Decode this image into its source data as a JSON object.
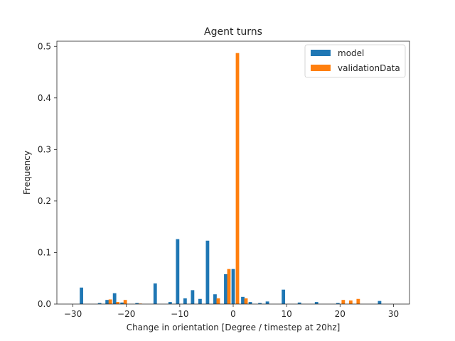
{
  "chart_data": {
    "type": "bar",
    "title": "Agent turns",
    "xlabel": "Change in orientation [Degree / timestep at 20hz]",
    "ylabel": "Frequency",
    "xlim": [
      -33,
      33
    ],
    "ylim": [
      0,
      0.51
    ],
    "xticks": [
      -30,
      -20,
      -10,
      0,
      10,
      20,
      30
    ],
    "yticks": [
      0.0,
      0.1,
      0.2,
      0.3,
      0.4,
      0.5
    ],
    "legend_position": "top-right",
    "grid": false,
    "bin_width": 0.64,
    "series": [
      {
        "name": "model",
        "color": "#1f77b4",
        "points": [
          {
            "x": -28.4,
            "y": 0.032
          },
          {
            "x": -25.0,
            "y": 0.002
          },
          {
            "x": -23.6,
            "y": 0.008
          },
          {
            "x": -22.2,
            "y": 0.021
          },
          {
            "x": -20.8,
            "y": 0.003
          },
          {
            "x": -18.0,
            "y": 0.002
          },
          {
            "x": -14.6,
            "y": 0.04
          },
          {
            "x": -11.8,
            "y": 0.004
          },
          {
            "x": -10.4,
            "y": 0.126
          },
          {
            "x": -9.0,
            "y": 0.011
          },
          {
            "x": -7.6,
            "y": 0.027
          },
          {
            "x": -6.2,
            "y": 0.01
          },
          {
            "x": -4.8,
            "y": 0.123
          },
          {
            "x": -3.4,
            "y": 0.019
          },
          {
            "x": -1.4,
            "y": 0.058
          },
          {
            "x": 0.0,
            "y": 0.068
          },
          {
            "x": 1.8,
            "y": 0.014
          },
          {
            "x": 3.2,
            "y": 0.004
          },
          {
            "x": 5.0,
            "y": 0.002
          },
          {
            "x": 6.4,
            "y": 0.005
          },
          {
            "x": 9.4,
            "y": 0.028
          },
          {
            "x": 12.4,
            "y": 0.003
          },
          {
            "x": 15.6,
            "y": 0.004
          },
          {
            "x": 19.6,
            "y": 0.002
          },
          {
            "x": 27.4,
            "y": 0.006
          }
        ]
      },
      {
        "name": "validationData",
        "color": "#ff7f0e",
        "points": [
          {
            "x": -23.0,
            "y": 0.009
          },
          {
            "x": -21.6,
            "y": 0.004
          },
          {
            "x": -20.2,
            "y": 0.008
          },
          {
            "x": -17.4,
            "y": 0.001
          },
          {
            "x": -2.8,
            "y": 0.011
          },
          {
            "x": -0.8,
            "y": 0.068
          },
          {
            "x": 0.8,
            "y": 0.487
          },
          {
            "x": 2.4,
            "y": 0.011
          },
          {
            "x": 20.6,
            "y": 0.008
          },
          {
            "x": 22.0,
            "y": 0.007
          },
          {
            "x": 23.4,
            "y": 0.01
          }
        ]
      }
    ]
  }
}
